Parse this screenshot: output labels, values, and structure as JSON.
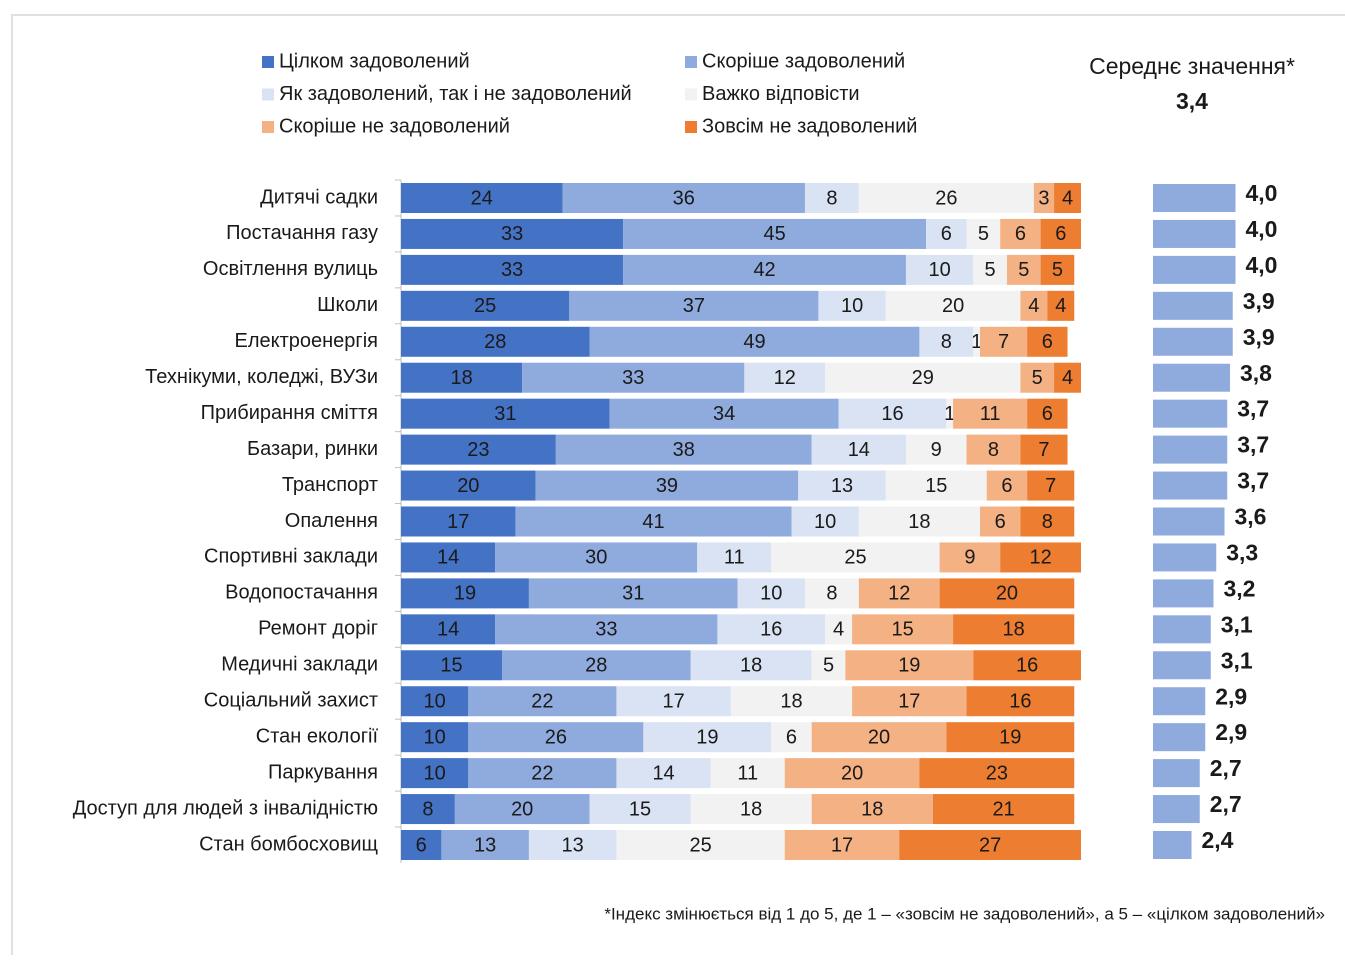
{
  "chart_data": {
    "type": "bar",
    "orientation": "horizontal",
    "stacked": true,
    "legend": "top",
    "categories": [
      "Дитячі садки",
      "Постачання газу",
      "Освітлення вулиць",
      "Школи",
      "Електроенергія",
      "Технікуми, коледжі, ВУЗи",
      "Прибирання сміття",
      "Базари, ринки",
      "Транспорт",
      "Опалення",
      "Спортивні заклади",
      "Водопостачання",
      "Ремонт доріг",
      "Медичні заклади",
      "Соціальний захист",
      "Стан екології",
      "Паркування",
      "Доступ для людей з інвалідністю",
      "Стан бомбосховищ"
    ],
    "series": [
      {
        "name": "Цілком задоволений",
        "color": "#4472c4",
        "values": [
          24,
          33,
          33,
          25,
          28,
          18,
          31,
          23,
          20,
          17,
          14,
          19,
          14,
          15,
          10,
          10,
          10,
          8,
          6
        ]
      },
      {
        "name": "Скоріше задоволений",
        "color": "#8faadc",
        "values": [
          36,
          45,
          42,
          37,
          49,
          33,
          34,
          38,
          39,
          41,
          30,
          31,
          33,
          28,
          22,
          26,
          22,
          20,
          13
        ]
      },
      {
        "name": "Як задоволений, так і не задоволений",
        "color": "#dae3f3",
        "values": [
          8,
          6,
          10,
          10,
          8,
          12,
          16,
          14,
          13,
          10,
          11,
          10,
          16,
          18,
          17,
          19,
          14,
          15,
          13
        ]
      },
      {
        "name": "Важко відповісти",
        "color": "#f2f2f2",
        "values": [
          26,
          5,
          5,
          20,
          1,
          29,
          1,
          9,
          15,
          18,
          25,
          8,
          4,
          5,
          18,
          6,
          11,
          18,
          25
        ]
      },
      {
        "name": "Скоріше не задоволений",
        "color": "#f4b183",
        "values": [
          3,
          6,
          5,
          4,
          7,
          5,
          11,
          8,
          6,
          6,
          9,
          12,
          15,
          19,
          17,
          20,
          20,
          18,
          17
        ]
      },
      {
        "name": "Зовсім не задоволений",
        "color": "#ed7d31",
        "values": [
          4,
          6,
          5,
          4,
          6,
          4,
          6,
          7,
          7,
          8,
          12,
          20,
          18,
          16,
          16,
          19,
          23,
          21,
          27
        ]
      }
    ],
    "mean": {
      "type": "bar",
      "title": "Середнє значення*",
      "overall": 3.4,
      "overall_label": "3,4",
      "color": "#8faadc",
      "xlim": [
        1,
        5
      ],
      "values": [
        4.0,
        4.0,
        4.0,
        3.9,
        3.9,
        3.8,
        3.7,
        3.7,
        3.7,
        3.6,
        3.3,
        3.2,
        3.1,
        3.1,
        2.9,
        2.9,
        2.7,
        2.7,
        2.4
      ],
      "value_labels": [
        "4,0",
        "4,0",
        "4,0",
        "3,9",
        "3,9",
        "3,8",
        "3,7",
        "3,7",
        "3,7",
        "3,6",
        "3,3",
        "3,2",
        "3,1",
        "3,1",
        "2,9",
        "2,9",
        "2,7",
        "2,7",
        "2,4"
      ]
    },
    "footnote": "*Індекс змінюється від 1 до 5, де 1 – «зовсім не задоволений», а 5 – «цілком задоволений»"
  }
}
